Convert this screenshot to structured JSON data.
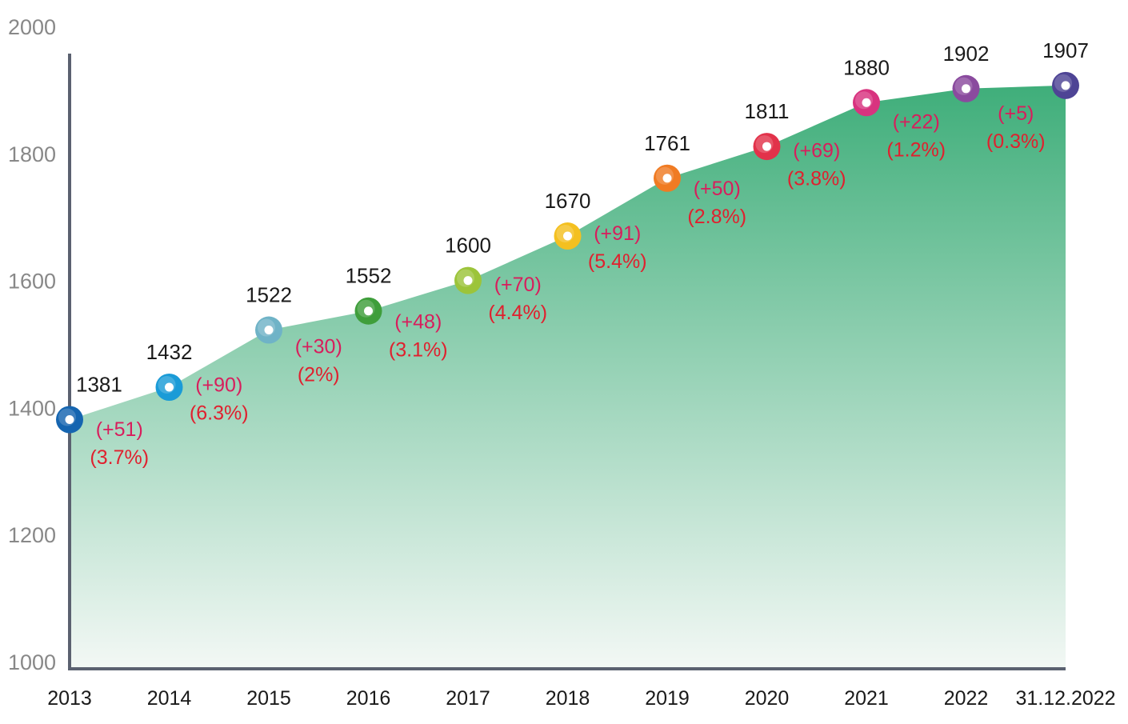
{
  "chart_data": {
    "type": "area",
    "title": "",
    "xlabel": "",
    "ylabel": "",
    "ylim": [
      1000,
      2000
    ],
    "yticks": [
      1000,
      1200,
      1400,
      1600,
      1800,
      2000
    ],
    "grid": false,
    "categories": [
      "2013",
      "2014",
      "2015",
      "2016",
      "2017",
      "2018",
      "2019",
      "2020",
      "2021",
      "2022",
      "31.12.2022"
    ],
    "values": [
      1381,
      1432,
      1522,
      1552,
      1600,
      1670,
      1761,
      1811,
      1880,
      1902,
      1907
    ],
    "value_labels": [
      "1381",
      "1432",
      "1522",
      "1552",
      "1600",
      "1670",
      "1761",
      "1811",
      "1880",
      "1902",
      "1907"
    ],
    "change_labels": [
      "(+51)",
      "(+90)",
      "(+30)",
      "(+48)",
      "(+70)",
      "(+91)",
      "(+50)",
      "(+69)",
      "(+22)",
      "(+5)"
    ],
    "percent_labels": [
      "(3.7%)",
      "(6.3%)",
      "(2%)",
      "(3.1%)",
      "(4.4%)",
      "(5.4%)",
      "(2.8%)",
      "(3.8%)",
      "(1.2%)",
      "(0.3%)"
    ],
    "marker_colors": [
      "#1565b0",
      "#1a9bd7",
      "#6fb3c7",
      "#3f9e3b",
      "#9cc43a",
      "#f4c020",
      "#f07b23",
      "#e2324a",
      "#d8337f",
      "#8a4a9e",
      "#4e4495"
    ],
    "fill_top_color": "#3fae7a",
    "fill_bottom_color": "#f3f8f5",
    "axis_color": "#5b6170",
    "change_color": "#d81d5c",
    "percent_color": "#e0202e"
  }
}
